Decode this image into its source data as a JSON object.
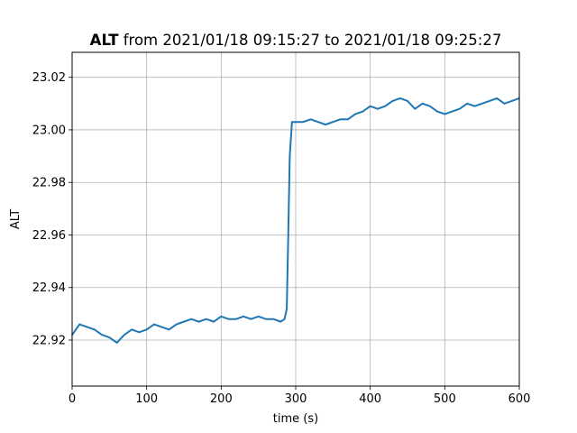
{
  "chart_data": {
    "type": "line",
    "title_bold": "ALT",
    "title_rest": " from 2021/01/18 09:15:27 to 2021/01/18 09:25:27",
    "xlabel": "time (s)",
    "ylabel": "ALT",
    "xlim": [
      0,
      600
    ],
    "ylim": [
      22.9025,
      23.0295
    ],
    "xticks": [
      0,
      100,
      200,
      300,
      400,
      500,
      600
    ],
    "yticks": [
      22.92,
      22.94,
      22.96,
      22.98,
      23.0,
      23.02
    ],
    "ytick_labels": [
      "22.92",
      "22.94",
      "22.96",
      "22.98",
      "23.00",
      "23.02"
    ],
    "grid": true,
    "line_color": "#1f77b4",
    "series": [
      {
        "x": [
          0,
          10,
          20,
          30,
          40,
          50,
          60,
          70,
          80,
          90,
          100,
          110,
          120,
          130,
          140,
          150,
          160,
          170,
          180,
          190,
          200,
          210,
          220,
          230,
          240,
          250,
          260,
          270,
          280,
          285,
          288,
          290,
          292,
          295,
          300,
          310,
          320,
          330,
          340,
          350,
          360,
          370,
          380,
          390,
          400,
          410,
          420,
          430,
          440,
          450,
          460,
          470,
          480,
          490,
          500,
          510,
          520,
          530,
          540,
          550,
          560,
          570,
          580,
          590,
          600
        ],
        "y": [
          22.922,
          22.926,
          22.925,
          22.924,
          22.922,
          22.921,
          22.919,
          22.922,
          22.924,
          22.923,
          22.924,
          22.926,
          22.925,
          22.924,
          22.926,
          22.927,
          22.928,
          22.927,
          22.928,
          22.927,
          22.929,
          22.928,
          22.928,
          22.929,
          22.928,
          22.929,
          22.928,
          22.928,
          22.927,
          22.928,
          22.932,
          22.96,
          22.99,
          23.003,
          23.003,
          23.003,
          23.004,
          23.003,
          23.002,
          23.003,
          23.004,
          23.004,
          23.006,
          23.007,
          23.009,
          23.008,
          23.009,
          23.011,
          23.012,
          23.011,
          23.008,
          23.01,
          23.009,
          23.007,
          23.006,
          23.007,
          23.008,
          23.01,
          23.009,
          23.01,
          23.011,
          23.012,
          23.01,
          23.011,
          23.012
        ]
      }
    ]
  }
}
